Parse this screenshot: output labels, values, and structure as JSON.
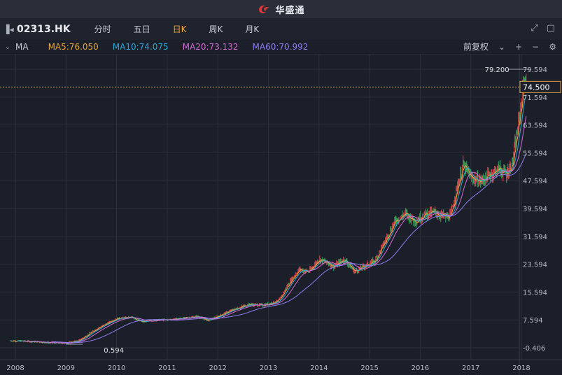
{
  "app": {
    "title": "华盛通"
  },
  "toolbar": {
    "ticker": "02313.HK",
    "tabs": [
      {
        "label": "分时",
        "active": false
      },
      {
        "label": "五日",
        "active": false
      },
      {
        "label": "日K",
        "active": true
      },
      {
        "label": "周K",
        "active": false
      },
      {
        "label": "月K",
        "active": false
      }
    ],
    "icons": [
      "collapse-panel-icon",
      "expand-icon",
      "window-icon"
    ]
  },
  "indicator_bar": {
    "name": "MA",
    "ma5": "MA5:76.050",
    "ma10": "MA10:74.075",
    "ma20": "MA20:73.132",
    "ma60": "MA60:70.992",
    "adjust": "前复权",
    "colors": {
      "ma5": "#e8a43a",
      "ma10": "#2fa6d8",
      "ma20": "#d46bd2",
      "ma60": "#8f7cf0"
    }
  },
  "chart_data": {
    "type": "candlestick",
    "y_ticks": [
      "79.594",
      "71.594",
      "63.594",
      "55.594",
      "47.594",
      "39.594",
      "31.594",
      "23.594",
      "15.594",
      "7.594",
      "-0.406"
    ],
    "x_ticks": [
      "2008",
      "2009",
      "2010",
      "2011",
      "2012",
      "2013",
      "2014",
      "2015",
      "2016",
      "2017",
      "2018"
    ],
    "ylim": [
      -0.406,
      79.594
    ],
    "high_label": "79.200",
    "low_label": "0.594",
    "current_price": "74.500",
    "price_path": [
      [
        2007.9,
        1.6
      ],
      [
        2008.3,
        1.4
      ],
      [
        2008.7,
        1.0
      ],
      [
        2009.0,
        0.9
      ],
      [
        2009.25,
        1.6
      ],
      [
        2009.6,
        5.0
      ],
      [
        2010.0,
        8.0
      ],
      [
        2010.3,
        8.3
      ],
      [
        2010.5,
        7.0
      ],
      [
        2010.8,
        7.6
      ],
      [
        2011.0,
        7.6
      ],
      [
        2011.4,
        8.2
      ],
      [
        2011.6,
        8.6
      ],
      [
        2011.8,
        7.4
      ],
      [
        2012.0,
        8.6
      ],
      [
        2012.3,
        10.5
      ],
      [
        2012.6,
        12.0
      ],
      [
        2012.9,
        11.8
      ],
      [
        2013.2,
        13.0
      ],
      [
        2013.4,
        18.0
      ],
      [
        2013.6,
        22.0
      ],
      [
        2013.8,
        21.5
      ],
      [
        2014.0,
        25.0
      ],
      [
        2014.3,
        23.0
      ],
      [
        2014.5,
        25.0
      ],
      [
        2014.7,
        21.5
      ],
      [
        2014.9,
        23.0
      ],
      [
        2015.1,
        24.5
      ],
      [
        2015.3,
        30.0
      ],
      [
        2015.5,
        36.0
      ],
      [
        2015.7,
        38.0
      ],
      [
        2015.9,
        36.0
      ],
      [
        2016.1,
        38.0
      ],
      [
        2016.3,
        38.5
      ],
      [
        2016.5,
        37.0
      ],
      [
        2016.6,
        37.5
      ],
      [
        2016.7,
        44.0
      ],
      [
        2016.85,
        52.0
      ],
      [
        2017.0,
        48.5
      ],
      [
        2017.2,
        47.5
      ],
      [
        2017.4,
        49.5
      ],
      [
        2017.55,
        51.0
      ],
      [
        2017.7,
        49.5
      ],
      [
        2017.82,
        52.5
      ],
      [
        2017.9,
        60.0
      ],
      [
        2018.0,
        70.0
      ],
      [
        2018.05,
        77.0
      ],
      [
        2018.1,
        74.5
      ]
    ]
  }
}
